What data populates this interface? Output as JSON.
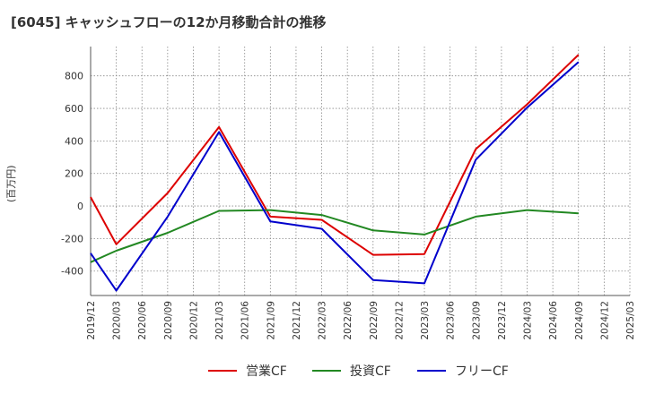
{
  "header": {
    "title": "[6045]  キャッシュフローの12か月移動合計の推移"
  },
  "axis": {
    "unit_label": "(百万円)"
  },
  "chart_data": {
    "type": "line",
    "title": "[6045]  キャッシュフローの12か月移動合計の推移",
    "xlabel": "",
    "ylabel": "(百万円)",
    "x": [
      "2019/12",
      "2020/03",
      "2020/06",
      "2020/09",
      "2020/12",
      "2021/03",
      "2021/06",
      "2021/09",
      "2021/12",
      "2022/03",
      "2022/06",
      "2022/09",
      "2022/12",
      "2023/03",
      "2023/06",
      "2023/09",
      "2023/12",
      "2024/03",
      "2024/06",
      "2024/09",
      "2024/12",
      "2025/03"
    ],
    "ylim": [
      -550,
      980
    ],
    "yticks": [
      -400,
      -200,
      0,
      200,
      400,
      600,
      800
    ],
    "grid": true,
    "legend": "bottom",
    "series": [
      {
        "name": "営業CF",
        "color": "#dd0000",
        "values": [
          55,
          -235,
          null,
          80,
          null,
          485,
          null,
          -65,
          null,
          -85,
          null,
          -300,
          null,
          -295,
          null,
          350,
          null,
          625,
          null,
          930,
          null,
          null
        ]
      },
      {
        "name": "投資CF",
        "color": "#228822",
        "values": [
          -345,
          -275,
          null,
          -165,
          null,
          -30,
          null,
          -25,
          null,
          -55,
          null,
          -150,
          null,
          -175,
          null,
          -65,
          null,
          -25,
          null,
          -45,
          null,
          null
        ]
      },
      {
        "name": "フリーCF",
        "color": "#0000cc",
        "values": [
          -290,
          -520,
          null,
          -65,
          null,
          455,
          null,
          -95,
          null,
          -140,
          null,
          -455,
          null,
          -475,
          null,
          285,
          null,
          605,
          null,
          885,
          null,
          null
        ]
      }
    ]
  }
}
